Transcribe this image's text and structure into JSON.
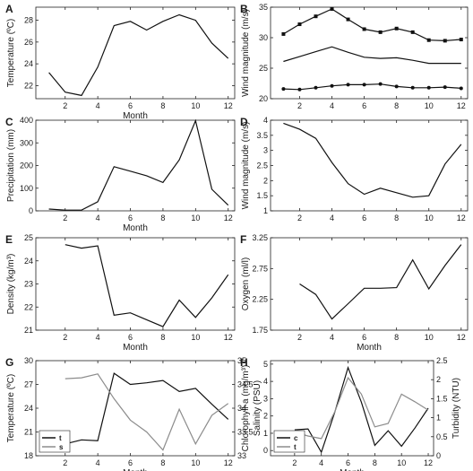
{
  "chart_data": [
    {
      "panel": "A",
      "type": "line",
      "xlabel": "Month",
      "ylabel": "Temperature (ºC)",
      "xlim": [
        0.2,
        12.4
      ],
      "ylim": [
        20.8,
        29.2
      ],
      "xticks": [
        2,
        4,
        6,
        8,
        10,
        12
      ],
      "yticks": [
        22,
        24,
        26,
        28
      ],
      "series": [
        {
          "x": [
            1,
            2,
            3,
            4,
            5,
            6,
            7,
            8,
            9,
            10,
            11,
            12
          ],
          "y": [
            23.2,
            21.4,
            21.1,
            23.7,
            27.5,
            27.9,
            27.1,
            27.9,
            28.5,
            28.0,
            25.9,
            24.5
          ],
          "color": "#111111",
          "marker": "none"
        }
      ]
    },
    {
      "panel": "B",
      "type": "line",
      "xlabel": "",
      "ylabel": "Wind magnitude (m/s)",
      "xlim": [
        0.2,
        12.4
      ],
      "ylim": [
        20,
        35
      ],
      "xticks": [
        2,
        4,
        6,
        8,
        10,
        12
      ],
      "yticks": [
        20,
        25,
        30,
        35
      ],
      "series": [
        {
          "x": [
            1,
            2,
            3,
            4,
            5,
            6,
            7,
            8,
            9,
            10,
            11,
            12
          ],
          "y": [
            30.6,
            32.2,
            33.5,
            34.7,
            33.0,
            31.4,
            30.9,
            31.5,
            30.9,
            29.6,
            29.5,
            29.7
          ],
          "color": "#111111",
          "marker": "square"
        },
        {
          "x": [
            1,
            2,
            3,
            4,
            5,
            6,
            7,
            8,
            9,
            10,
            11,
            12
          ],
          "y": [
            26.1,
            26.9,
            27.7,
            28.5,
            27.6,
            26.8,
            26.6,
            26.7,
            26.3,
            25.8,
            25.8,
            25.8
          ],
          "color": "#111111",
          "marker": "none"
        },
        {
          "x": [
            1,
            2,
            3,
            4,
            5,
            6,
            7,
            8,
            9,
            10,
            11,
            12
          ],
          "y": [
            21.6,
            21.5,
            21.8,
            22.1,
            22.3,
            22.3,
            22.4,
            22.0,
            21.8,
            21.8,
            21.9,
            21.7
          ],
          "color": "#111111",
          "marker": "circle"
        }
      ]
    },
    {
      "panel": "C",
      "type": "line",
      "xlabel": "Month",
      "ylabel": "Precipitation (mm)",
      "xlim": [
        0.2,
        12.4
      ],
      "ylim": [
        0,
        400
      ],
      "xticks": [
        2,
        4,
        6,
        8,
        10,
        12
      ],
      "yticks": [
        0,
        100,
        200,
        300,
        400
      ],
      "series": [
        {
          "x": [
            1,
            2,
            3,
            4,
            5,
            6,
            7,
            8,
            9,
            10,
            11,
            12
          ],
          "y": [
            8,
            3,
            3,
            40,
            195,
            175,
            155,
            125,
            225,
            398,
            95,
            25
          ],
          "color": "#111111",
          "marker": "none"
        }
      ]
    },
    {
      "panel": "D",
      "type": "line",
      "xlabel": "",
      "ylabel": "Wind magnitude (m/s)",
      "xlim": [
        0.2,
        12.4
      ],
      "ylim": [
        1,
        4
      ],
      "xticks": [
        2,
        4,
        6,
        8,
        10,
        12
      ],
      "yticks": [
        1,
        1.5,
        2,
        2.5,
        3,
        3.5,
        4
      ],
      "series": [
        {
          "x": [
            1,
            2,
            3,
            4,
            5,
            6,
            7,
            8,
            9,
            10,
            11,
            12
          ],
          "y": [
            3.9,
            3.7,
            3.4,
            2.6,
            1.9,
            1.55,
            1.75,
            1.6,
            1.45,
            1.5,
            2.55,
            3.2
          ],
          "color": "#111111",
          "marker": "none"
        }
      ]
    },
    {
      "panel": "E",
      "type": "line",
      "xlabel": "Month",
      "ylabel": "Density (kg/m³)",
      "xlim": [
        0.2,
        12.4
      ],
      "ylim": [
        21,
        25
      ],
      "xticks": [
        2,
        4,
        6,
        8,
        10,
        12
      ],
      "yticks": [
        21,
        22,
        23,
        24,
        25
      ],
      "series": [
        {
          "x": [
            2,
            3,
            4,
            5,
            6,
            7,
            8,
            9,
            10,
            11,
            12
          ],
          "y": [
            24.7,
            24.55,
            24.65,
            21.65,
            21.75,
            21.45,
            21.15,
            22.3,
            21.55,
            22.4,
            23.4
          ],
          "color": "#111111",
          "marker": "none"
        }
      ]
    },
    {
      "panel": "F",
      "type": "line",
      "xlabel": "Month",
      "ylabel": "Oxygen (ml/l)",
      "xlim": [
        0.2,
        12.4
      ],
      "ylim": [
        1.75,
        3.25
      ],
      "xticks": [
        2,
        4,
        6,
        8,
        10,
        12
      ],
      "yticks": [
        1.75,
        2.25,
        2.75,
        3.25
      ],
      "ytick_labels": [
        "1.75",
        "2.25",
        "2.75",
        "3.25"
      ],
      "series": [
        {
          "x": [
            2,
            3,
            4,
            5,
            6,
            7,
            8,
            9,
            10,
            11,
            12
          ],
          "y": [
            2.5,
            2.33,
            1.93,
            2.18,
            2.43,
            2.43,
            2.44,
            2.89,
            2.42,
            2.8,
            3.14
          ],
          "color": "#111111",
          "marker": "none"
        }
      ]
    },
    {
      "panel": "G",
      "type": "line",
      "xlabel": "Month",
      "ylabel": "Temperature (ºC)",
      "ylabel_right": "Salinity (PSU)",
      "xlim": [
        0.2,
        12.4
      ],
      "ylim": [
        18,
        30
      ],
      "ylim_right": [
        33,
        35
      ],
      "xticks": [
        2,
        4,
        6,
        8,
        10,
        12
      ],
      "yticks": [
        18,
        21,
        24,
        27,
        30
      ],
      "yticks_right": [
        33,
        33.5,
        34,
        34.5,
        35
      ],
      "legend": [
        {
          "label": "t",
          "color": "#111111"
        },
        {
          "label": "s",
          "color": "#8c8c8c"
        }
      ],
      "series": [
        {
          "x": [
            2,
            3,
            4,
            5,
            6,
            7,
            8,
            9,
            10,
            11,
            12
          ],
          "y": [
            19.5,
            20.0,
            19.9,
            28.4,
            27.0,
            27.2,
            27.5,
            26.1,
            26.5,
            24.5,
            22.6
          ],
          "color": "#111111",
          "axis": "left",
          "marker": "none"
        },
        {
          "x": [
            2,
            3,
            4,
            5,
            6,
            7,
            8,
            9,
            10,
            11,
            12
          ],
          "y": [
            34.62,
            34.64,
            34.72,
            34.2,
            33.75,
            33.5,
            33.12,
            33.98,
            33.25,
            33.85,
            34.1
          ],
          "color": "#8c8c8c",
          "axis": "right",
          "marker": "none"
        }
      ]
    },
    {
      "panel": "H",
      "type": "line",
      "xlabel": "Month",
      "ylabel": "Chlorophyll-a (mg/m³)",
      "ylabel_right": "Turbidity (NTU)",
      "xlim": [
        0.2,
        12.4
      ],
      "ylim": [
        -0.3,
        5.2
      ],
      "ylim_right": [
        0,
        2.5
      ],
      "xticks": [
        2,
        4,
        6,
        8,
        10,
        12
      ],
      "yticks": [
        0,
        1,
        2,
        3,
        4,
        5
      ],
      "yticks_right": [
        0,
        0.5,
        1,
        1.5,
        2,
        2.5
      ],
      "legend": [
        {
          "label": "c",
          "color": "#111111"
        },
        {
          "label": "t",
          "color": "#8c8c8c"
        }
      ],
      "series": [
        {
          "x": [
            2,
            3,
            4,
            5,
            6,
            7,
            8,
            9,
            10,
            11,
            12
          ],
          "y": [
            1.2,
            1.25,
            -0.1,
            2.2,
            4.8,
            2.8,
            0.3,
            1.15,
            0.25,
            1.3,
            2.45
          ],
          "color": "#111111",
          "axis": "left",
          "marker": "none"
        },
        {
          "x": [
            2,
            3,
            4,
            5,
            6,
            7,
            8,
            9,
            10,
            11,
            12
          ],
          "y": [
            0.62,
            0.52,
            0.45,
            1.15,
            2.05,
            1.62,
            0.76,
            0.85,
            1.62,
            1.42,
            1.2
          ],
          "color": "#8c8c8c",
          "axis": "right",
          "marker": "none"
        }
      ]
    }
  ]
}
